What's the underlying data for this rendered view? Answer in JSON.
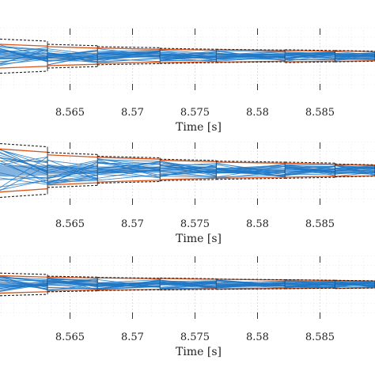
{
  "chart_data": [
    {
      "type": "line",
      "xlabel": "Time [s]",
      "xticks": [
        8.565,
        8.57,
        8.575,
        8.58,
        8.585
      ],
      "xtick_labels": [
        "8.565",
        "8.57",
        "8.575",
        "8.58",
        "8.585"
      ],
      "xlim": [
        8.5594,
        8.5894
      ],
      "grid": true,
      "series_colors": {
        "samples": "#1f77c4",
        "bound_a": "#d9541a",
        "bound_b": "#222222"
      },
      "steps": [
        {
          "x": [
            8.5594,
            8.5632
          ],
          "center": 0.0,
          "spread": 0.5,
          "bound_a": 0.5,
          "bound_b": 0.72
        },
        {
          "x": [
            8.5632,
            8.5672
          ],
          "center": 0.0,
          "spread": 0.38,
          "bound_a": 0.4,
          "bound_b": 0.5
        },
        {
          "x": [
            8.5672,
            8.5722
          ],
          "center": 0.02,
          "spread": 0.3,
          "bound_a": 0.32,
          "bound_b": 0.38
        },
        {
          "x": [
            8.5722,
            8.5767
          ],
          "center": 0.01,
          "spread": 0.26,
          "bound_a": 0.28,
          "bound_b": 0.32
        },
        {
          "x": [
            8.5767,
            8.5822
          ],
          "center": 0.01,
          "spread": 0.24,
          "bound_a": 0.26,
          "bound_b": 0.28
        },
        {
          "x": [
            8.5822,
            8.5862
          ],
          "center": 0.0,
          "spread": 0.22,
          "bound_a": 0.24,
          "bound_b": 0.27
        },
        {
          "x": [
            8.5862,
            8.5894
          ],
          "center": 0.0,
          "spread": 0.2,
          "bound_a": 0.22,
          "bound_b": 0.24
        }
      ],
      "y_center_rel": 0.0
    },
    {
      "type": "line",
      "xlabel": "Time [s]",
      "xticks": [
        8.565,
        8.57,
        8.575,
        8.58,
        8.585
      ],
      "xtick_labels": [
        "8.565",
        "8.57",
        "8.575",
        "8.58",
        "8.585"
      ],
      "xlim": [
        8.5594,
        8.5894
      ],
      "grid": true,
      "series_colors": {
        "samples": "#1f77c4",
        "bound_a": "#d9541a",
        "bound_b": "#222222"
      },
      "steps": [
        {
          "x": [
            8.5594,
            8.5632
          ],
          "center": 0.0,
          "spread": 0.8,
          "bound_a": 0.8,
          "bound_b": 1.0
        },
        {
          "x": [
            8.5632,
            8.5672
          ],
          "center": 0.02,
          "spread": 0.55,
          "bound_a": 0.56,
          "bound_b": 0.65
        },
        {
          "x": [
            8.5672,
            8.5722
          ],
          "center": 0.03,
          "spread": 0.45,
          "bound_a": 0.46,
          "bound_b": 0.5
        },
        {
          "x": [
            8.5722,
            8.5767
          ],
          "center": 0.02,
          "spread": 0.35,
          "bound_a": 0.36,
          "bound_b": 0.4
        },
        {
          "x": [
            8.5767,
            8.5822
          ],
          "center": 0.01,
          "spread": 0.3,
          "bound_a": 0.3,
          "bound_b": 0.34
        },
        {
          "x": [
            8.5822,
            8.5862
          ],
          "center": 0.01,
          "spread": 0.26,
          "bound_a": 0.26,
          "bound_b": 0.3
        },
        {
          "x": [
            8.5862,
            8.5894
          ],
          "center": 0.0,
          "spread": 0.22,
          "bound_a": 0.22,
          "bound_b": 0.24
        }
      ],
      "y_center_rel": 0.0
    },
    {
      "type": "line",
      "xlabel": "Time [s]",
      "xticks": [
        8.565,
        8.57,
        8.575,
        8.58,
        8.585
      ],
      "xtick_labels": [
        "8.565",
        "8.57",
        "8.575",
        "8.58",
        "8.585"
      ],
      "xlim": [
        8.5594,
        8.5894
      ],
      "grid": true,
      "series_colors": {
        "samples": "#1f77c4",
        "bound_a": "#d9541a",
        "bound_b": "#222222"
      },
      "steps": [
        {
          "x": [
            8.5594,
            8.5632
          ],
          "center": 0.0,
          "spread": 0.42,
          "bound_a": 0.42,
          "bound_b": 0.55
        },
        {
          "x": [
            8.5632,
            8.5672
          ],
          "center": 0.02,
          "spread": 0.32,
          "bound_a": 0.34,
          "bound_b": 0.38
        },
        {
          "x": [
            8.5672,
            8.5722
          ],
          "center": 0.02,
          "spread": 0.28,
          "bound_a": 0.3,
          "bound_b": 0.32
        },
        {
          "x": [
            8.5722,
            8.5767
          ],
          "center": 0.02,
          "spread": 0.25,
          "bound_a": 0.27,
          "bound_b": 0.29
        },
        {
          "x": [
            8.5767,
            8.5822
          ],
          "center": 0.01,
          "spread": 0.22,
          "bound_a": 0.24,
          "bound_b": 0.25
        },
        {
          "x": [
            8.5822,
            8.5862
          ],
          "center": 0.01,
          "spread": 0.2,
          "bound_a": 0.21,
          "bound_b": 0.22
        },
        {
          "x": [
            8.5862,
            8.5894
          ],
          "center": 0.0,
          "spread": 0.18,
          "bound_a": 0.19,
          "bound_b": 0.2
        }
      ],
      "y_center_rel": 0.0
    }
  ]
}
